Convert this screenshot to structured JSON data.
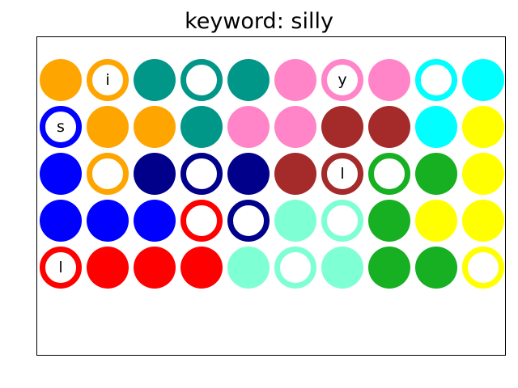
{
  "title": "keyword: silly",
  "colors": {
    "orange": "#FFA500",
    "teal": "#009688",
    "pink": "#FF85C8",
    "cyan": "#00FFFF",
    "blue": "#0000FF",
    "navy": "#00008B",
    "brown": "#A52A2A",
    "green": "#16B022",
    "yellow": "#FFFF00",
    "red": "#FF0000",
    "aquamarine": "#7FFFD4"
  },
  "grid": {
    "rows": 5,
    "cols": 10,
    "cells": [
      [
        {
          "color": "orange",
          "style": "filled",
          "letter": ""
        },
        {
          "color": "orange",
          "style": "ring",
          "letter": "i"
        },
        {
          "color": "teal",
          "style": "filled",
          "letter": ""
        },
        {
          "color": "teal",
          "style": "ring",
          "letter": ""
        },
        {
          "color": "teal",
          "style": "filled",
          "letter": ""
        },
        {
          "color": "pink",
          "style": "filled",
          "letter": ""
        },
        {
          "color": "pink",
          "style": "ring",
          "letter": "y"
        },
        {
          "color": "pink",
          "style": "filled",
          "letter": ""
        },
        {
          "color": "cyan",
          "style": "ring",
          "letter": ""
        },
        {
          "color": "cyan",
          "style": "filled",
          "letter": ""
        }
      ],
      [
        {
          "color": "blue",
          "style": "ring",
          "letter": "s"
        },
        {
          "color": "orange",
          "style": "filled",
          "letter": ""
        },
        {
          "color": "orange",
          "style": "filled",
          "letter": ""
        },
        {
          "color": "teal",
          "style": "filled",
          "letter": ""
        },
        {
          "color": "pink",
          "style": "filled",
          "letter": ""
        },
        {
          "color": "pink",
          "style": "filled",
          "letter": ""
        },
        {
          "color": "brown",
          "style": "filled",
          "letter": ""
        },
        {
          "color": "brown",
          "style": "filled",
          "letter": ""
        },
        {
          "color": "cyan",
          "style": "filled",
          "letter": ""
        },
        {
          "color": "yellow",
          "style": "filled",
          "letter": ""
        }
      ],
      [
        {
          "color": "blue",
          "style": "filled",
          "letter": ""
        },
        {
          "color": "orange",
          "style": "ring",
          "letter": ""
        },
        {
          "color": "navy",
          "style": "filled",
          "letter": ""
        },
        {
          "color": "navy",
          "style": "ring",
          "letter": ""
        },
        {
          "color": "navy",
          "style": "filled",
          "letter": ""
        },
        {
          "color": "brown",
          "style": "filled",
          "letter": ""
        },
        {
          "color": "brown",
          "style": "ring",
          "letter": "l"
        },
        {
          "color": "green",
          "style": "ring",
          "letter": ""
        },
        {
          "color": "green",
          "style": "filled",
          "letter": ""
        },
        {
          "color": "yellow",
          "style": "filled",
          "letter": ""
        }
      ],
      [
        {
          "color": "blue",
          "style": "filled",
          "letter": ""
        },
        {
          "color": "blue",
          "style": "filled",
          "letter": ""
        },
        {
          "color": "blue",
          "style": "filled",
          "letter": ""
        },
        {
          "color": "red",
          "style": "ring",
          "letter": ""
        },
        {
          "color": "navy",
          "style": "ring",
          "letter": ""
        },
        {
          "color": "aquamarine",
          "style": "filled",
          "letter": ""
        },
        {
          "color": "aquamarine",
          "style": "ring",
          "letter": ""
        },
        {
          "color": "green",
          "style": "filled",
          "letter": ""
        },
        {
          "color": "yellow",
          "style": "filled",
          "letter": ""
        },
        {
          "color": "yellow",
          "style": "filled",
          "letter": ""
        }
      ],
      [
        {
          "color": "red",
          "style": "ring",
          "letter": "l"
        },
        {
          "color": "red",
          "style": "filled",
          "letter": ""
        },
        {
          "color": "red",
          "style": "filled",
          "letter": ""
        },
        {
          "color": "red",
          "style": "filled",
          "letter": ""
        },
        {
          "color": "aquamarine",
          "style": "filled",
          "letter": ""
        },
        {
          "color": "aquamarine",
          "style": "ring",
          "letter": ""
        },
        {
          "color": "aquamarine",
          "style": "filled",
          "letter": ""
        },
        {
          "color": "green",
          "style": "filled",
          "letter": ""
        },
        {
          "color": "green",
          "style": "filled",
          "letter": ""
        },
        {
          "color": "yellow",
          "style": "ring",
          "letter": ""
        }
      ]
    ]
  }
}
